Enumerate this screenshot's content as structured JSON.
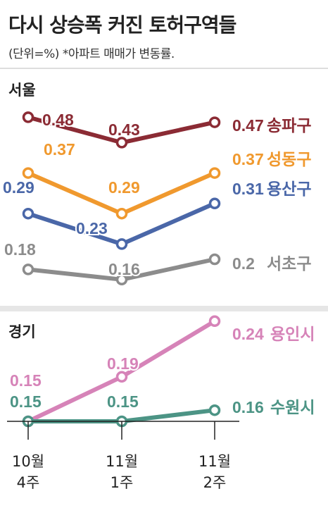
{
  "title": "다시 상승폭 커진 토허구역들",
  "subtitle": "(단위=%) *아파트 매매가 변동률.",
  "categories": [
    "10월\n4주",
    "11월\n1주",
    "11월\n2주"
  ],
  "chart_data": [
    {
      "type": "line",
      "panel": "서울",
      "categories": [
        "10월 4주",
        "11월 1주",
        "11월 2주"
      ],
      "series": [
        {
          "name": "송파구",
          "values": [
            0.48,
            0.43,
            0.47
          ],
          "color": "#8b2b34"
        },
        {
          "name": "성동구",
          "values": [
            0.37,
            0.29,
            0.37
          ],
          "color": "#f0992e"
        },
        {
          "name": "용산구",
          "values": [
            0.29,
            0.23,
            0.31
          ],
          "color": "#4a67a8"
        },
        {
          "name": "서초구",
          "values": [
            0.18,
            0.16,
            0.2
          ],
          "color": "#8c8c8c"
        }
      ]
    },
    {
      "type": "line",
      "panel": "경기",
      "categories": [
        "10월 4주",
        "11월 1주",
        "11월 2주"
      ],
      "series": [
        {
          "name": "용인시",
          "values": [
            0.15,
            0.19,
            0.24
          ],
          "color": "#d683b8"
        },
        {
          "name": "수원시",
          "values": [
            0.15,
            0.15,
            0.16
          ],
          "color": "#4c9485"
        }
      ]
    }
  ]
}
